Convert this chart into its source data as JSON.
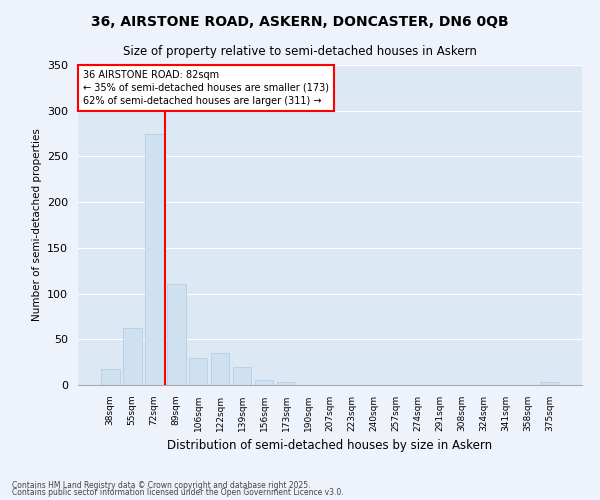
{
  "title1": "36, AIRSTONE ROAD, ASKERN, DONCASTER, DN6 0QB",
  "title2": "Size of property relative to semi-detached houses in Askern",
  "xlabel": "Distribution of semi-detached houses by size in Askern",
  "ylabel": "Number of semi-detached properties",
  "categories": [
    "38sqm",
    "55sqm",
    "72sqm",
    "89sqm",
    "106sqm",
    "122sqm",
    "139sqm",
    "156sqm",
    "173sqm",
    "190sqm",
    "207sqm",
    "223sqm",
    "240sqm",
    "257sqm",
    "274sqm",
    "291sqm",
    "308sqm",
    "324sqm",
    "341sqm",
    "358sqm",
    "375sqm"
  ],
  "values": [
    17,
    62,
    275,
    110,
    30,
    35,
    20,
    5,
    3,
    0,
    0,
    0,
    0,
    0,
    0,
    0,
    0,
    0,
    0,
    0,
    3
  ],
  "bar_color": "#cfe0f0",
  "bar_edge_color": "#aec8e0",
  "red_line_x": 2.5,
  "annotation_title": "36 AIRSTONE ROAD: 82sqm",
  "annotation_line1": "← 35% of semi-detached houses are smaller (173)",
  "annotation_line2": "62% of semi-detached houses are larger (311) →",
  "ylim": [
    0,
    350
  ],
  "yticks": [
    0,
    50,
    100,
    150,
    200,
    250,
    300,
    350
  ],
  "footnote1": "Contains HM Land Registry data © Crown copyright and database right 2025.",
  "footnote2": "Contains public sector information licensed under the Open Government Licence v3.0.",
  "bg_color": "#eef2fb",
  "plot_bg_color": "#dde8f5"
}
